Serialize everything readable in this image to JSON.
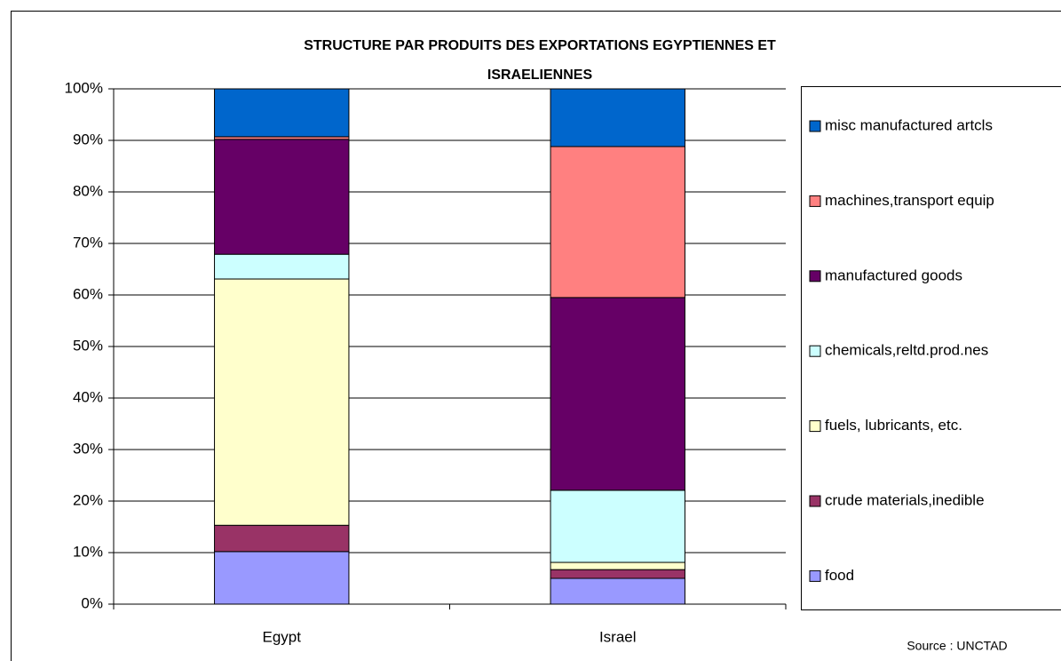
{
  "chart_data": {
    "type": "stacked_bar",
    "title": [
      "STRUCTURE PAR PRODUITS DES EXPORTATIONS EGYPTIENNES ET",
      "ISRAELIENNES"
    ],
    "source": "Source : UNCTAD",
    "categories": [
      "Egypt",
      "Israel"
    ],
    "series": [
      {
        "name": "food",
        "color": "#9999ff",
        "values": [
          10.2,
          5.0
        ]
      },
      {
        "name": "crude materials,inedible",
        "color": "#993366",
        "values": [
          5.1,
          1.7
        ]
      },
      {
        "name": "fuels, lubricants, etc.",
        "color": "#ffffcc",
        "values": [
          47.8,
          1.4
        ]
      },
      {
        "name": "chemicals,reltd.prod.nes",
        "color": "#ccffff",
        "values": [
          4.8,
          14.0
        ]
      },
      {
        "name": "manufactured goods",
        "color": "#660066",
        "values": [
          22.3,
          37.4
        ]
      },
      {
        "name": "machines,transport equip",
        "color": "#ff8080",
        "values": [
          0.5,
          29.3
        ]
      },
      {
        "name": "misc manufactured artcls",
        "color": "#0066cc",
        "values": [
          9.3,
          11.2
        ]
      }
    ],
    "ylim": [
      0,
      100
    ],
    "yticks": [
      {
        "value": 0,
        "label": "0%"
      },
      {
        "value": 10,
        "label": "10%"
      },
      {
        "value": 20,
        "label": "20%"
      },
      {
        "value": 30,
        "label": "30%"
      },
      {
        "value": 40,
        "label": "40%"
      },
      {
        "value": 50,
        "label": "50%"
      },
      {
        "value": 60,
        "label": "60%"
      },
      {
        "value": 70,
        "label": "70%"
      },
      {
        "value": 80,
        "label": "80%"
      },
      {
        "value": 90,
        "label": "90%"
      },
      {
        "value": 100,
        "label": "100%"
      }
    ],
    "grid": true,
    "legend": "right"
  }
}
